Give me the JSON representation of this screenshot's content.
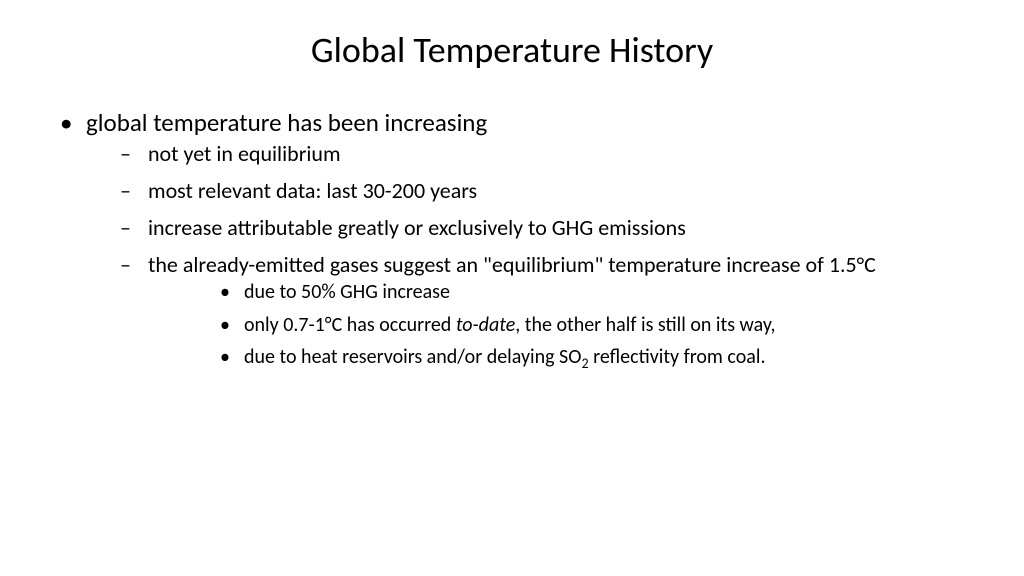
{
  "slide": {
    "title": "Global Temperature History",
    "background_color": "#ffffff",
    "text_color": "#000000",
    "title_fontsize": 36,
    "bullets": {
      "lvl1_fontsize": 25,
      "lvl2_fontsize": 22,
      "lvl3_fontsize": 20,
      "lvl1_marker": "•",
      "lvl2_marker": "–",
      "lvl3_marker": "•",
      "items": [
        {
          "level": 1,
          "text": "global temperature has been increasing"
        },
        {
          "level": 2,
          "text": "not yet in equilibrium"
        },
        {
          "level": 2,
          "text": "most relevant data: last 30-200 years"
        },
        {
          "level": 2,
          "text": "increase attributable greatly or exclusively to GHG emissions"
        },
        {
          "level": 2,
          "text_html": "the already-emitted gases suggest an \"equilibrium\" temperature increase of 1.5°C"
        },
        {
          "level": 3,
          "text": "due to 50% GHG increase"
        },
        {
          "level": 3,
          "text_parts": [
            "only 0.7-1°C has occurred ",
            {
              "italic": "to-date"
            },
            ", the other half is still on its way,"
          ]
        },
        {
          "level": 3,
          "text_parts": [
            "due to heat reservoirs and/or delaying SO",
            {
              "sub": "2"
            },
            " reflectivity from coal."
          ]
        }
      ]
    }
  }
}
